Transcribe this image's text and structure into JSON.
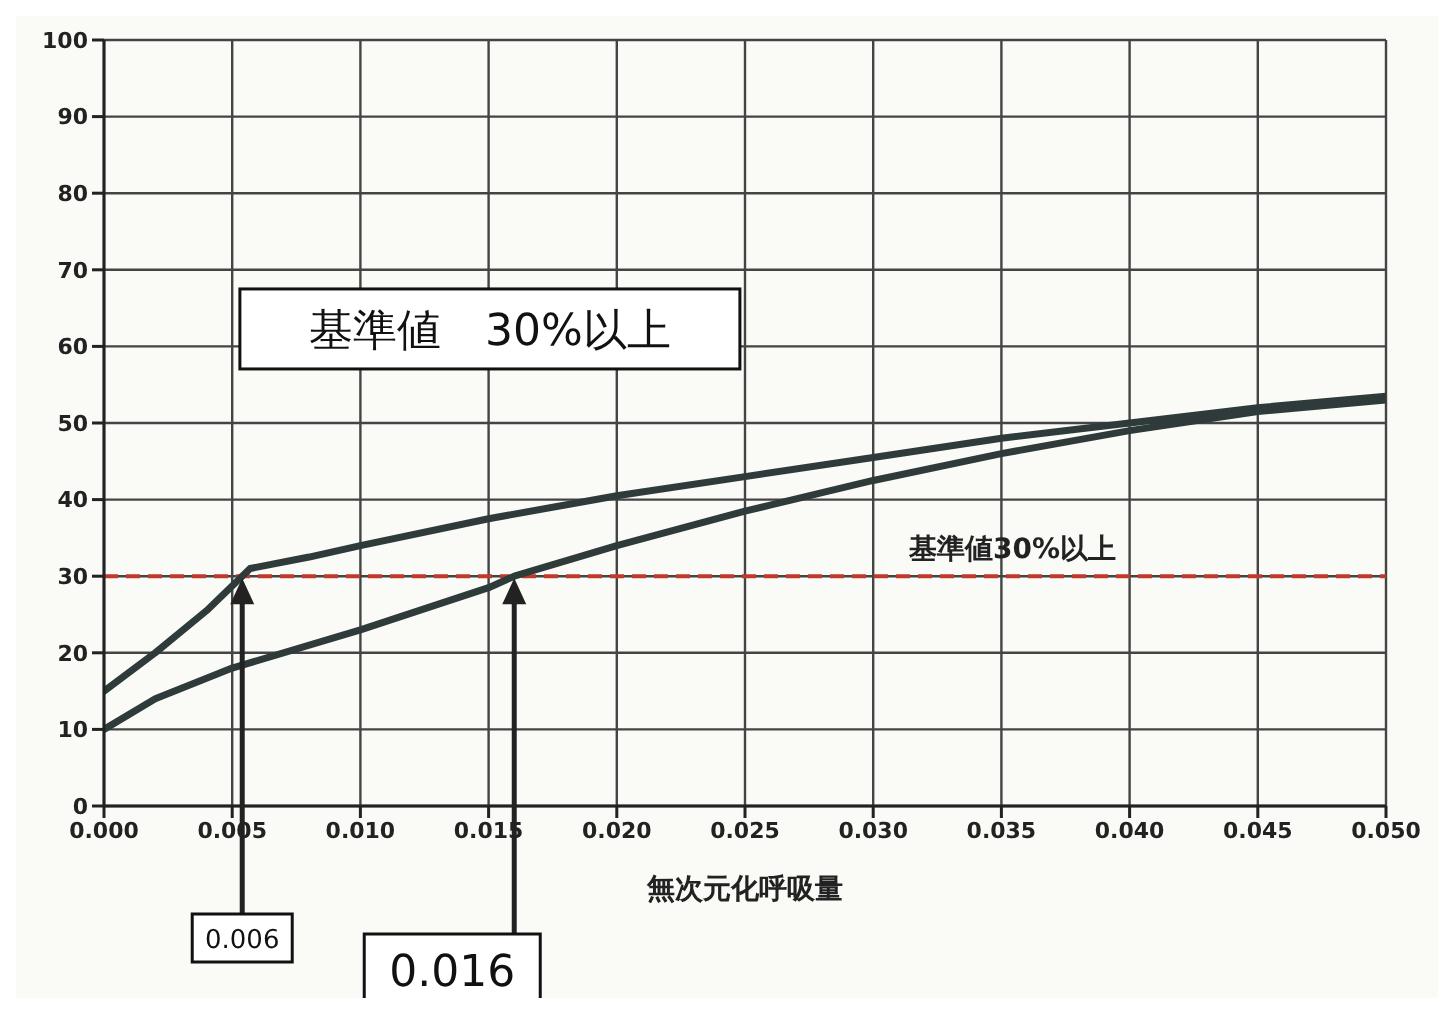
{
  "chart_data": {
    "type": "line",
    "xlabel": "無次元化呼吸量",
    "x": [
      0,
      0.002,
      0.004,
      0.0057,
      0.008,
      0.01,
      0.015,
      0.02,
      0.025,
      0.03,
      0.035,
      0.04,
      0.045,
      0.05
    ],
    "series": [
      {
        "color": "#2f3b3a",
        "values": [
          15,
          20,
          25.5,
          31,
          32.5,
          34,
          37.5,
          40.5,
          43,
          45.5,
          48,
          50,
          52,
          53.5
        ]
      },
      {
        "color": "#2f3b3a",
        "x": [
          0,
          0.002,
          0.005,
          0.01,
          0.015,
          0.016,
          0.02,
          0.025,
          0.03,
          0.035,
          0.04,
          0.045,
          0.05
        ],
        "values": [
          10,
          14,
          18,
          23,
          28.5,
          30,
          34,
          38.5,
          42.5,
          46,
          49,
          51.5,
          53
        ]
      }
    ],
    "xlim": [
      0,
      0.05
    ],
    "xticks": [
      {
        "value": 0,
        "label": "0.000"
      },
      0.005,
      {
        "value": 0.01,
        "label": "0.010"
      },
      0.015,
      {
        "value": 0.02,
        "label": "0.020"
      },
      0.025,
      {
        "value": 0.03,
        "label": "0.030"
      },
      0.035,
      {
        "value": 0.04,
        "label": "0.040"
      },
      0.045,
      {
        "value": 0.05,
        "label": "0.050"
      }
    ],
    "ylim": [
      0,
      100
    ],
    "yticks": [
      0,
      10,
      20,
      30,
      40,
      50,
      60,
      70,
      80,
      90,
      100
    ],
    "grid": true,
    "legend": false,
    "marker": "none",
    "line_style": "solid",
    "ref_lines": [
      {
        "axis": "y",
        "value": 30,
        "label": "基準値30%以上",
        "color": "#c0392b",
        "line_style": "dashed"
      }
    ],
    "annotations": [
      "基準値　30%以上",
      "0.006",
      "0.016"
    ]
  }
}
